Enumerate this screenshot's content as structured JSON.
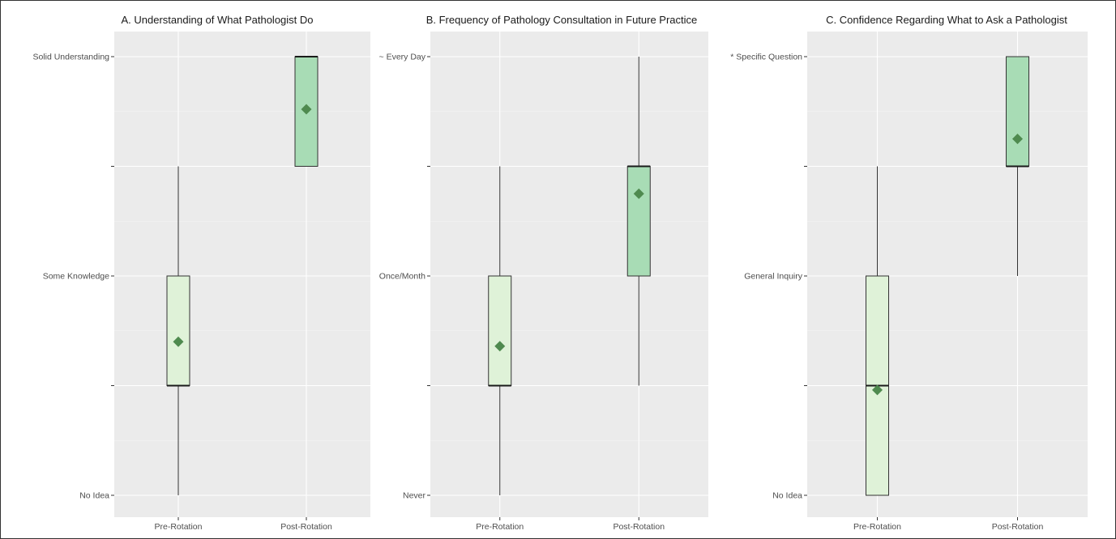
{
  "chart_data": [
    {
      "type": "boxplot",
      "title": "A. Understanding of What Pathologist Do",
      "xlabel": "",
      "ylabel": "",
      "categories": [
        "Pre-Rotation",
        "Post-Rotation"
      ],
      "ylim": [
        1,
        5
      ],
      "y_ticks": [
        {
          "value": 1,
          "label": "No Idea"
        },
        {
          "value": 2,
          "label": ""
        },
        {
          "value": 3,
          "label": "Some Knowledge"
        },
        {
          "value": 4,
          "label": ""
        },
        {
          "value": 5,
          "label": "Solid Understanding"
        }
      ],
      "boxes": [
        {
          "category": "Pre-Rotation",
          "whisker_low": 1,
          "q1": 2,
          "median": 2,
          "q3": 3,
          "whisker_high": 4,
          "mean": 2.4,
          "fill": "#dff2d8"
        },
        {
          "category": "Post-Rotation",
          "whisker_low": 4,
          "q1": 4,
          "median": 5,
          "q3": 5,
          "whisker_high": 5,
          "mean": 4.52,
          "fill": "#a8dcb5"
        }
      ],
      "grid": true
    },
    {
      "type": "boxplot",
      "title": "B. Frequency of Pathology Consultation in Future Practice",
      "xlabel": "",
      "ylabel": "",
      "categories": [
        "Pre-Rotation",
        "Post-Rotation"
      ],
      "ylim": [
        1,
        5
      ],
      "y_ticks": [
        {
          "value": 1,
          "label": "Never"
        },
        {
          "value": 2,
          "label": ""
        },
        {
          "value": 3,
          "label": "Once/Month"
        },
        {
          "value": 4,
          "label": ""
        },
        {
          "value": 5,
          "label": "~ Every Day"
        }
      ],
      "boxes": [
        {
          "category": "Pre-Rotation",
          "whisker_low": 1,
          "q1": 2,
          "median": 2,
          "q3": 3,
          "whisker_high": 4,
          "mean": 2.36,
          "fill": "#dff2d8"
        },
        {
          "category": "Post-Rotation",
          "whisker_low": 2,
          "q1": 3,
          "median": 4,
          "q3": 4,
          "whisker_high": 5,
          "mean": 3.75,
          "fill": "#a8dcb5"
        }
      ],
      "grid": true
    },
    {
      "type": "boxplot",
      "title": "C. Confidence Regarding What to Ask a Pathologist",
      "xlabel": "",
      "ylabel": "",
      "categories": [
        "Pre-Rotation",
        "Post-Rotation"
      ],
      "ylim": [
        1,
        5
      ],
      "y_ticks": [
        {
          "value": 1,
          "label": "No Idea"
        },
        {
          "value": 2,
          "label": ""
        },
        {
          "value": 3,
          "label": "General Inquiry"
        },
        {
          "value": 4,
          "label": ""
        },
        {
          "value": 5,
          "label": "* Specific Question"
        }
      ],
      "boxes": [
        {
          "category": "Pre-Rotation",
          "whisker_low": 1,
          "q1": 1,
          "median": 2,
          "q3": 3,
          "whisker_high": 4,
          "mean": 1.96,
          "fill": "#dff2d8"
        },
        {
          "category": "Post-Rotation",
          "whisker_low": 3,
          "q1": 4,
          "median": 4,
          "q3": 5,
          "whisker_high": 5,
          "mean": 4.25,
          "fill": "#a8dcb5"
        }
      ],
      "grid": true
    }
  ],
  "colors": {
    "panel_background": "#ebebeb",
    "grid_major": "#ffffff",
    "grid_minor": "#f4f4f4",
    "mean_marker": "#4f8a4f",
    "box_stroke": "#333333",
    "whisker": "#333333",
    "text": "#1a1a1a",
    "tick_text": "#4d4d4d"
  }
}
